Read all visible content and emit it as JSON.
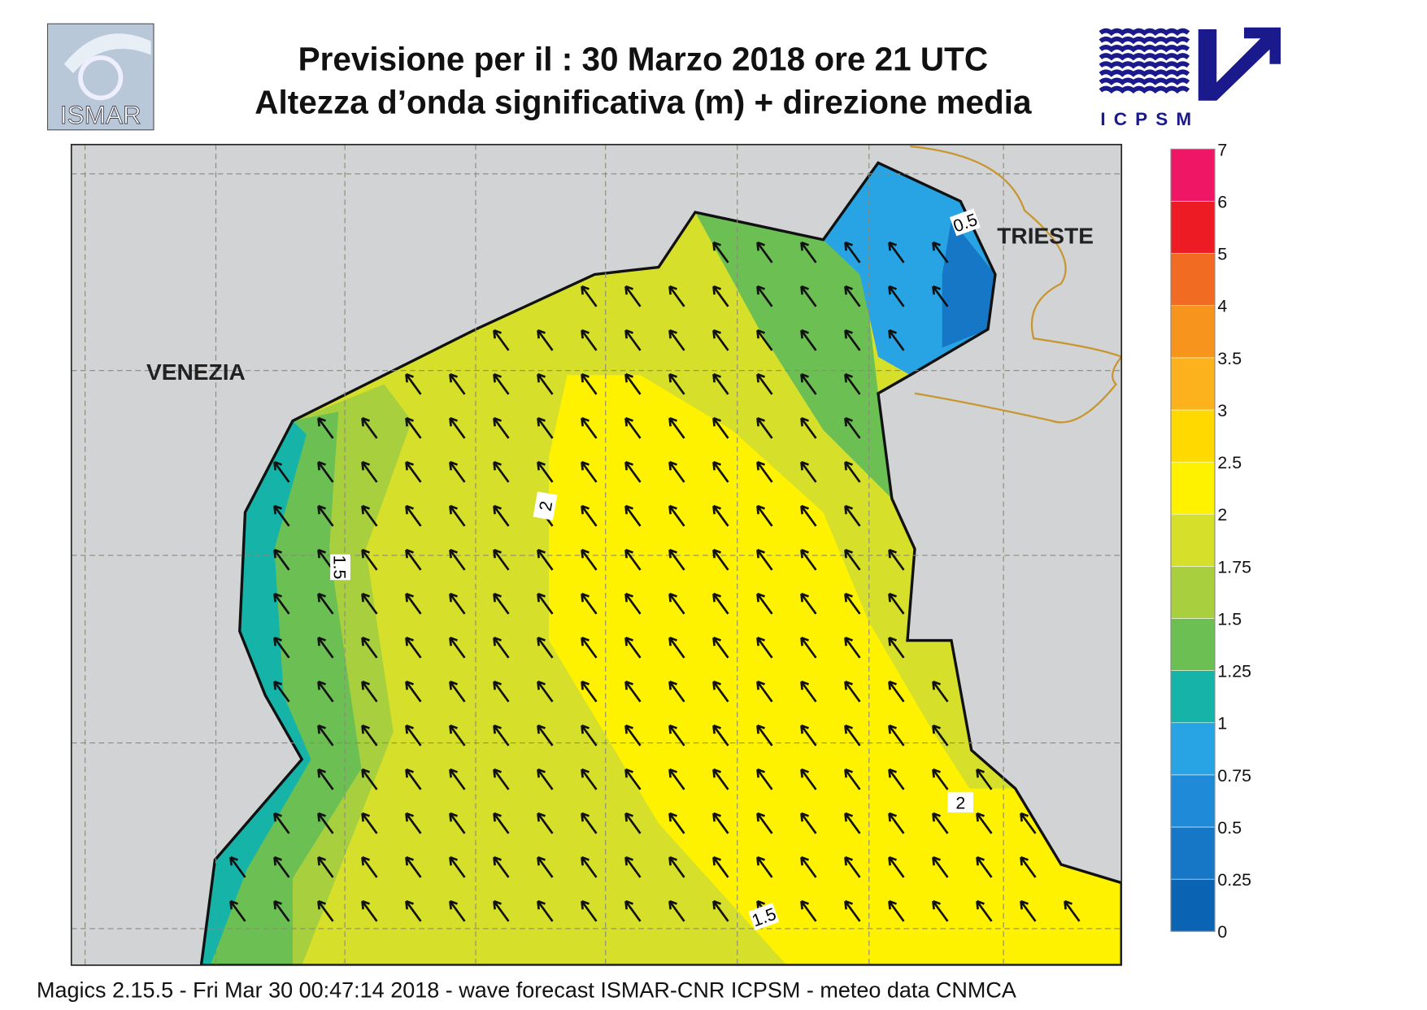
{
  "header": {
    "title_line1": "Previsione per il  :  30   Marzo   2018   ore 21 UTC",
    "title_line2": "Altezza d’onda significativa (m) + direzione media",
    "logo_left": "ISMAR",
    "logo_right": "ICPSM"
  },
  "map": {
    "cities": [
      "VENEZIA",
      "TRIESTE"
    ],
    "contour_labels": [
      "2",
      "1.5",
      "2",
      "1.5",
      "0.5"
    ]
  },
  "colorbar": {
    "ticks": [
      0,
      0.25,
      0.5,
      0.75,
      1,
      1.25,
      1.5,
      1.75,
      2,
      2.5,
      3,
      3.5,
      4,
      5,
      6,
      7
    ],
    "colors": [
      "#0b63b4",
      "#1577c6",
      "#1f8bd8",
      "#28a3e3",
      "#15b3a8",
      "#6cbf52",
      "#a8cf3d",
      "#d6e02a",
      "#fff200",
      "#ffd900",
      "#fbb21c",
      "#f7941d",
      "#f26b22",
      "#ed1c24",
      "#ee1665"
    ]
  },
  "footer": "Magics 2.15.5 - Fri Mar 30 00:47:14 2018 - wave forecast  ISMAR-CNR  ICPSM - meteo data   CNMCA"
}
